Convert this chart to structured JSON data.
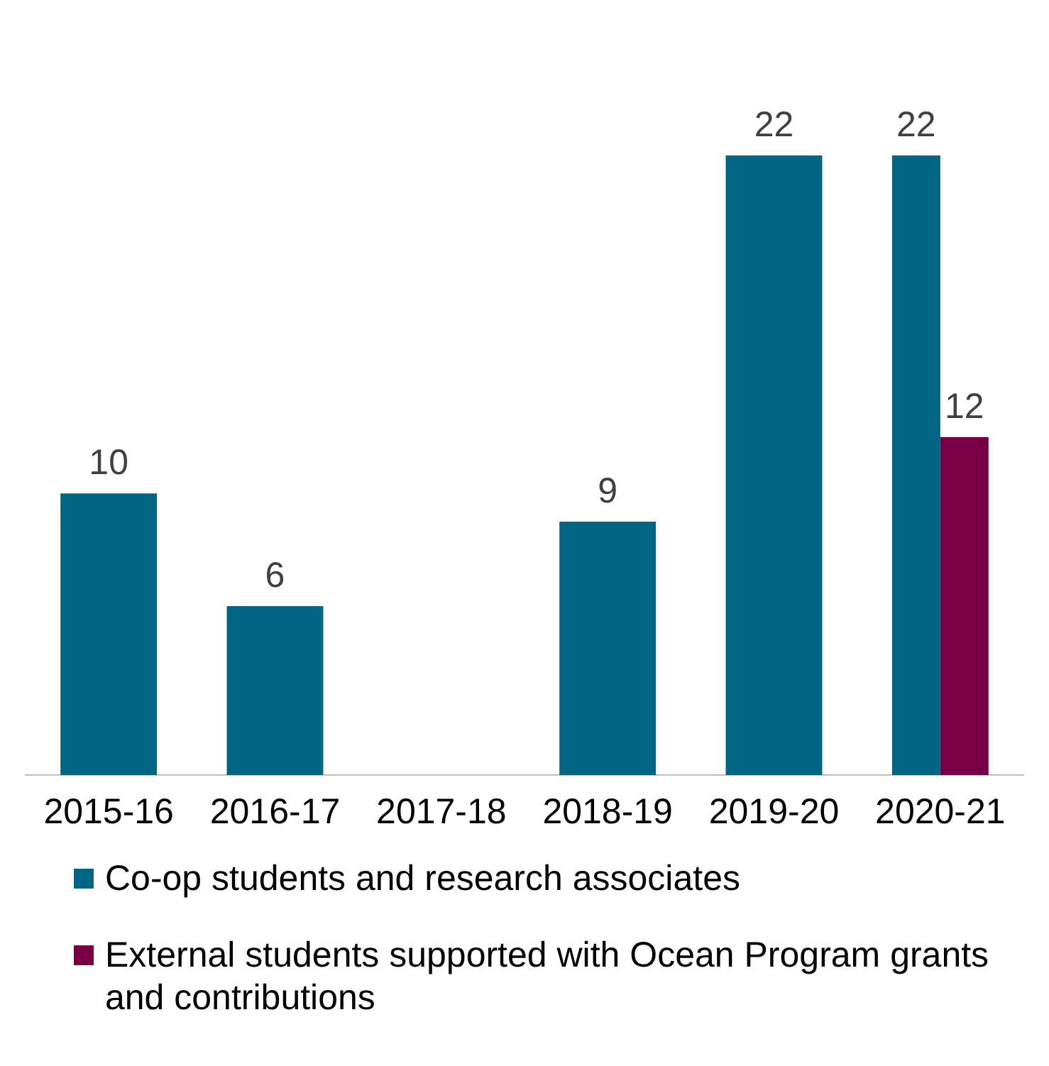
{
  "chart_data": {
    "type": "bar",
    "categories": [
      "2015-16",
      "2016-17",
      "2017-18",
      "2018-19",
      "2019-20",
      "2020-21"
    ],
    "series": [
      {
        "name": "Co-op students and research associates",
        "color": "#006684",
        "values": [
          10,
          6,
          null,
          9,
          22,
          22
        ]
      },
      {
        "name": "External students supported with Ocean Program grants and contributions",
        "color": "#7a0046",
        "values": [
          null,
          null,
          null,
          null,
          null,
          12
        ]
      }
    ],
    "data_labels": true,
    "grid": false,
    "legend": "bottom",
    "tick_labels": "x"
  }
}
